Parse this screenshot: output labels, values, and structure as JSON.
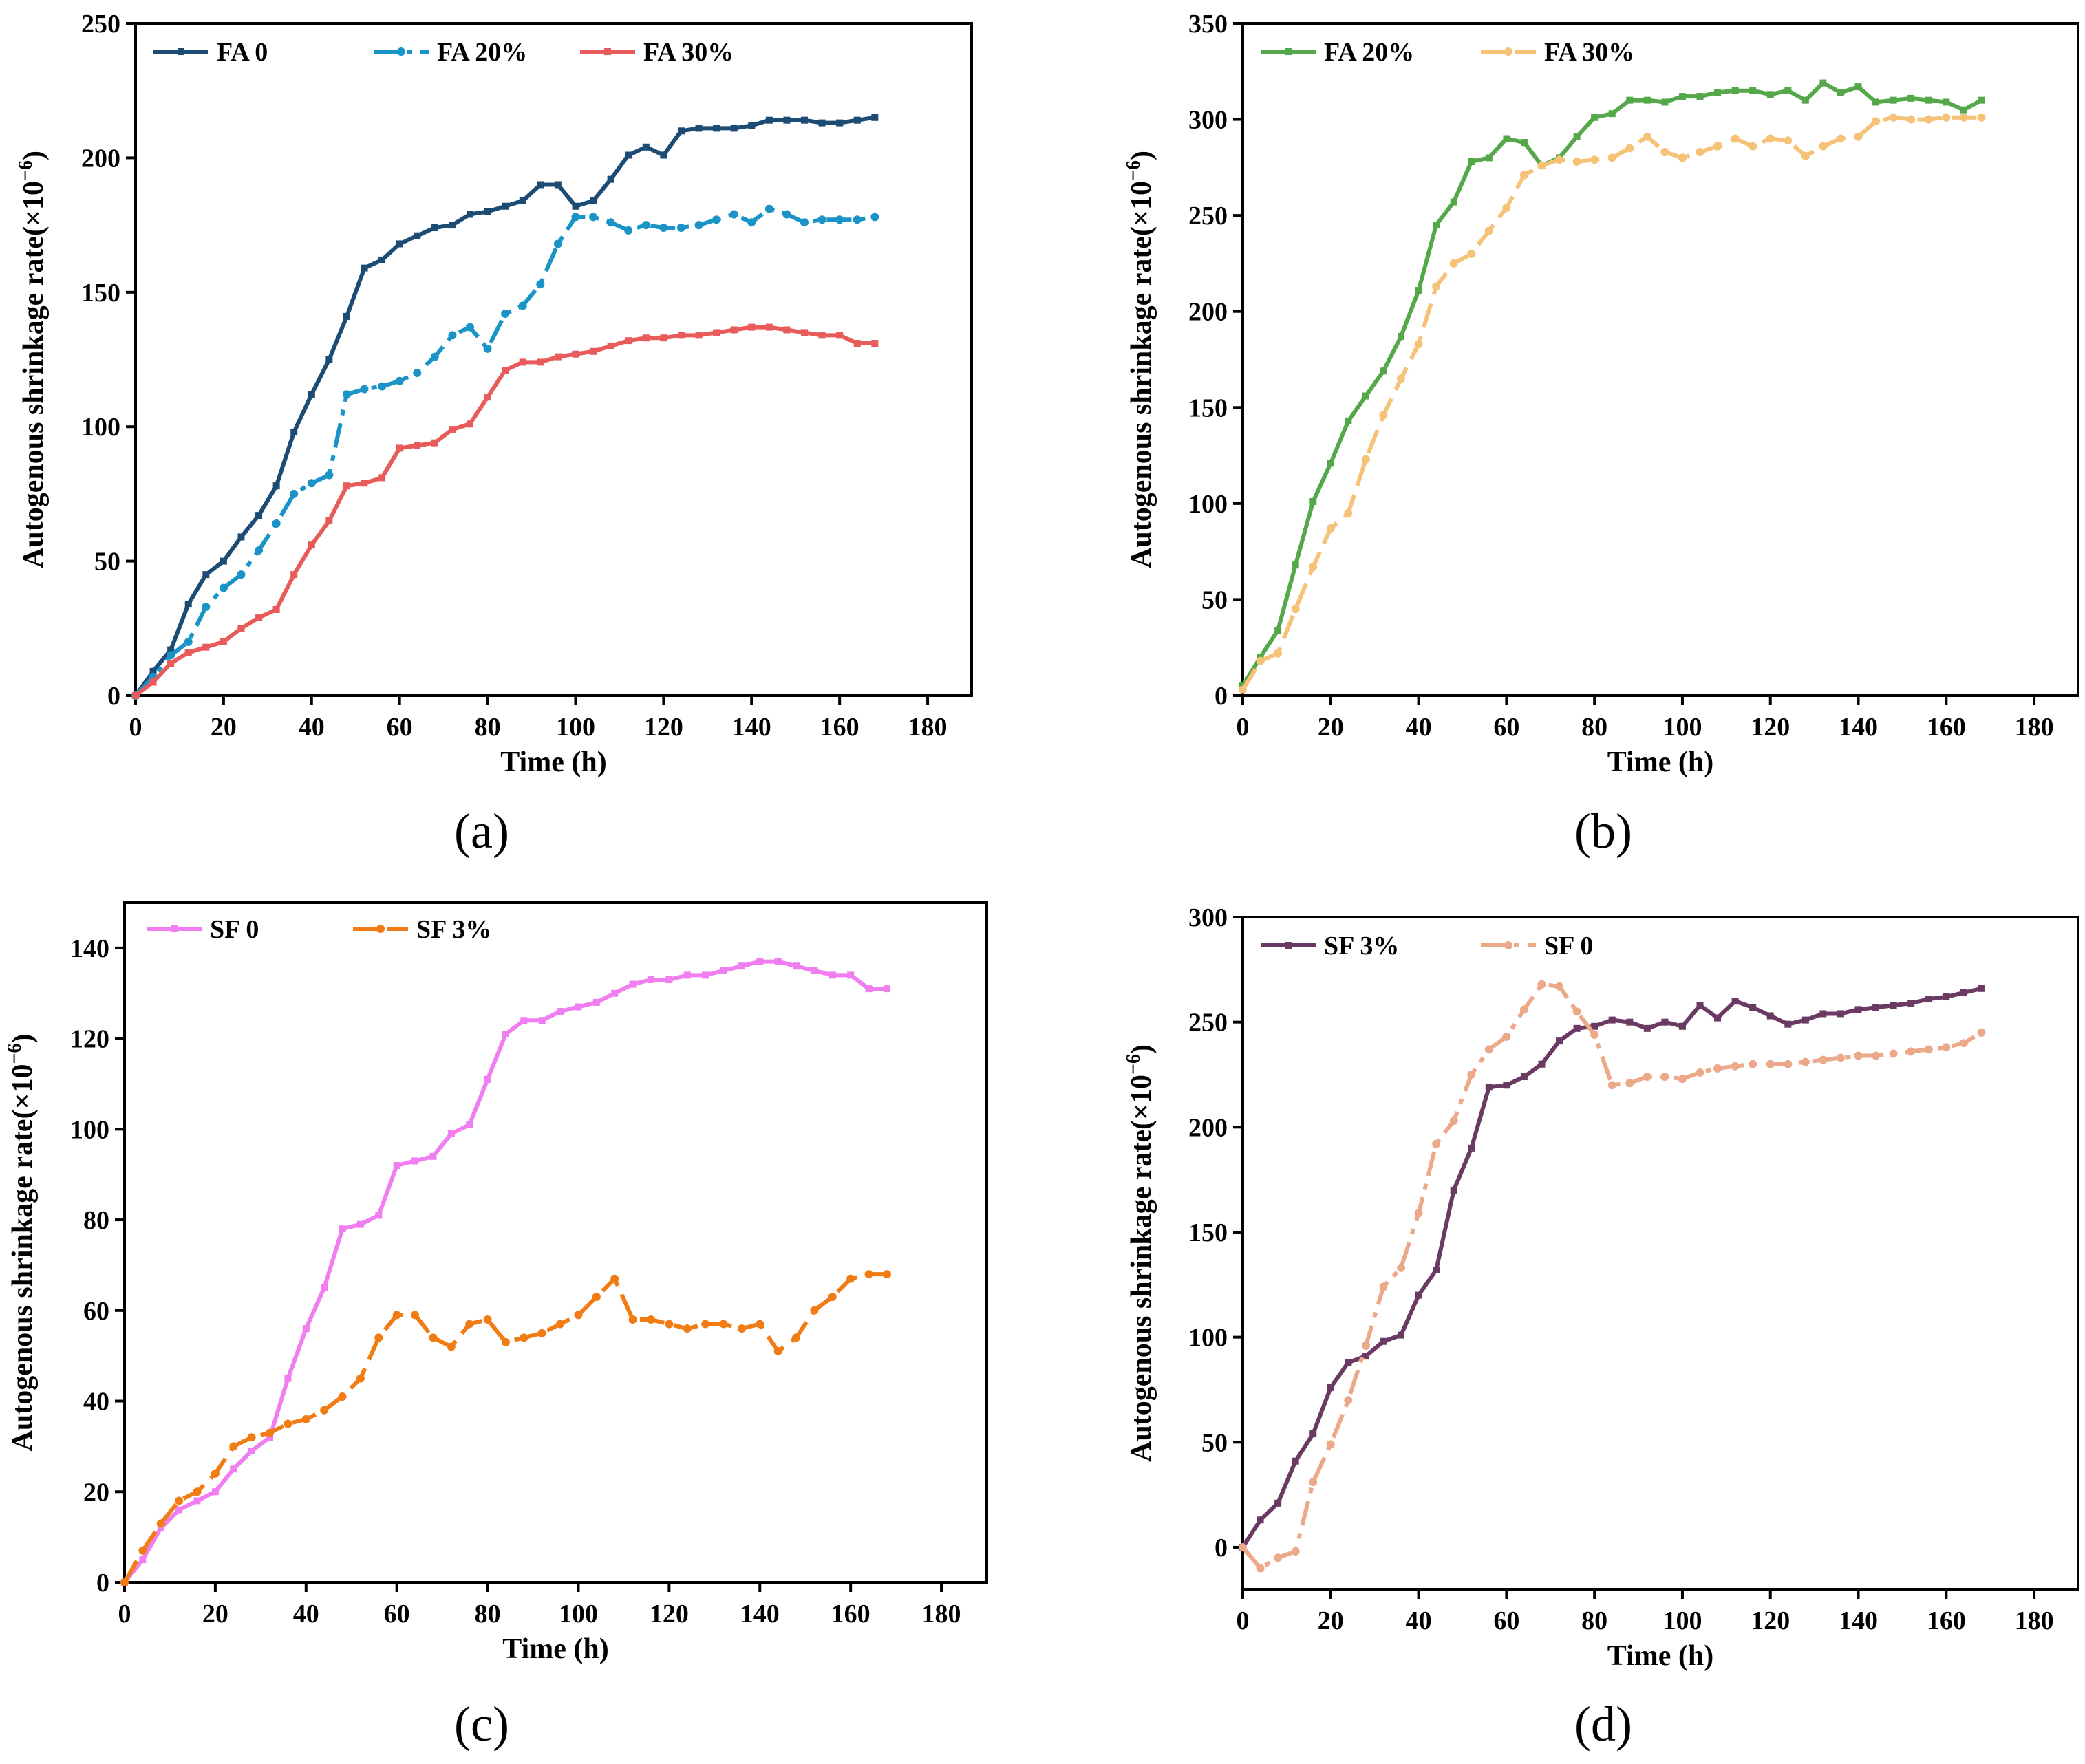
{
  "chart_data": [
    {
      "panel_label": "(a)",
      "type": "line",
      "xlabel": "Time (h)",
      "ylabel": "Autogenous shrinkage rate(×10",
      "ylabel_exp": "−6",
      "ylabel_close": ")",
      "xlim": [
        0,
        190
      ],
      "ylim": [
        0,
        250
      ],
      "xticks": [
        0,
        20,
        40,
        60,
        80,
        100,
        120,
        140,
        160,
        180
      ],
      "yticks": [
        0,
        50,
        100,
        150,
        200,
        250
      ],
      "series": [
        {
          "name": "FA 0",
          "color": "#1c4c73",
          "dash": "solid",
          "marker": "square",
          "x": [
            0,
            4,
            8,
            12,
            16,
            20,
            24,
            28,
            32,
            36,
            40,
            44,
            48,
            52,
            56,
            60,
            64,
            68,
            72,
            76,
            80,
            84,
            88,
            92,
            96,
            100,
            104,
            108,
            112,
            116,
            120,
            124,
            128,
            132,
            136,
            140,
            144,
            148,
            152,
            156,
            160,
            164,
            168
          ],
          "y": [
            0,
            9,
            17,
            34,
            45,
            50,
            59,
            67,
            78,
            98,
            112,
            125,
            141,
            159,
            162,
            168,
            171,
            174,
            175,
            179,
            180,
            182,
            184,
            190,
            190,
            182,
            184,
            192,
            201,
            204,
            201,
            210,
            211,
            211,
            211,
            212,
            214,
            214,
            214,
            213,
            213,
            214,
            215
          ]
        },
        {
          "name": "FA 20%",
          "color": "#1a93c7",
          "dash": "dashdot",
          "marker": "circle",
          "x": [
            0,
            4,
            8,
            12,
            16,
            20,
            24,
            28,
            32,
            36,
            40,
            44,
            48,
            52,
            56,
            60,
            64,
            68,
            72,
            76,
            80,
            84,
            88,
            92,
            96,
            100,
            104,
            108,
            112,
            116,
            120,
            124,
            128,
            132,
            136,
            140,
            144,
            148,
            152,
            156,
            160,
            164,
            168
          ],
          "y": [
            0,
            7,
            15,
            20,
            33,
            40,
            45,
            54,
            64,
            75,
            79,
            82,
            112,
            114,
            115,
            117,
            120,
            126,
            134,
            137,
            129,
            142,
            145,
            153,
            168,
            178,
            178,
            176,
            173,
            175,
            174,
            174,
            175,
            177,
            179,
            176,
            181,
            179,
            176,
            177,
            177,
            177,
            178
          ]
        },
        {
          "name": "FA 30%",
          "color": "#e85b5b",
          "dash": "solid",
          "marker": "square",
          "x": [
            0,
            4,
            8,
            12,
            16,
            20,
            24,
            28,
            32,
            36,
            40,
            44,
            48,
            52,
            56,
            60,
            64,
            68,
            72,
            76,
            80,
            84,
            88,
            92,
            96,
            100,
            104,
            108,
            112,
            116,
            120,
            124,
            128,
            132,
            136,
            140,
            144,
            148,
            152,
            156,
            160,
            164,
            168
          ],
          "y": [
            0,
            5,
            12,
            16,
            18,
            20,
            25,
            29,
            32,
            45,
            56,
            65,
            78,
            79,
            81,
            92,
            93,
            94,
            99,
            101,
            111,
            121,
            124,
            124,
            126,
            127,
            128,
            130,
            132,
            133,
            133,
            134,
            134,
            135,
            136,
            137,
            137,
            136,
            135,
            134,
            134,
            131,
            131
          ]
        }
      ]
    },
    {
      "panel_label": "(b)",
      "type": "line",
      "xlabel": "Time (h)",
      "ylabel": "Autogenous shrinkage rate(×10",
      "ylabel_exp": "−6",
      "ylabel_close": ")",
      "xlim": [
        0,
        190
      ],
      "ylim": [
        0,
        350
      ],
      "xticks": [
        0,
        20,
        40,
        60,
        80,
        100,
        120,
        140,
        160,
        180
      ],
      "yticks": [
        0,
        50,
        100,
        150,
        200,
        250,
        300,
        350
      ],
      "series": [
        {
          "name": "FA 20%",
          "color": "#55a84a",
          "dash": "solid",
          "marker": "square",
          "x": [
            0,
            4,
            8,
            12,
            16,
            20,
            24,
            28,
            32,
            36,
            40,
            44,
            48,
            52,
            56,
            60,
            64,
            68,
            72,
            76,
            80,
            84,
            88,
            92,
            96,
            100,
            104,
            108,
            112,
            116,
            120,
            124,
            128,
            132,
            136,
            140,
            144,
            148,
            152,
            156,
            160,
            164,
            168
          ],
          "y": [
            5,
            20,
            34,
            68,
            101,
            121,
            143,
            156,
            169,
            187,
            211,
            245,
            257,
            278,
            280,
            290,
            288,
            276,
            280,
            291,
            301,
            303,
            310,
            310,
            309,
            312,
            312,
            314,
            315,
            315,
            313,
            315,
            310,
            319,
            314,
            317,
            309,
            310,
            311,
            310,
            309,
            305,
            310
          ]
        },
        {
          "name": "FA 30%",
          "color": "#f5c277",
          "dash": "dashed",
          "marker": "circle",
          "x": [
            0,
            4,
            8,
            12,
            16,
            20,
            24,
            28,
            32,
            36,
            40,
            44,
            48,
            52,
            56,
            60,
            64,
            68,
            72,
            76,
            80,
            84,
            88,
            92,
            96,
            100,
            104,
            108,
            112,
            116,
            120,
            124,
            128,
            132,
            136,
            140,
            144,
            148,
            152,
            156,
            160,
            164,
            168
          ],
          "y": [
            3,
            18,
            22,
            45,
            67,
            87,
            95,
            123,
            146,
            165,
            183,
            213,
            225,
            230,
            242,
            254,
            271,
            276,
            279,
            278,
            279,
            280,
            285,
            291,
            283,
            280,
            283,
            286,
            290,
            286,
            290,
            289,
            281,
            286,
            290,
            291,
            299,
            301,
            300,
            300,
            301,
            301,
            301
          ]
        }
      ]
    },
    {
      "panel_label": "(c)",
      "type": "line",
      "xlabel": "Time (h)",
      "ylabel": "Autogenous shrinkage rate(×10",
      "ylabel_exp": "−6",
      "ylabel_close": ")",
      "xlim": [
        0,
        190
      ],
      "ylim": [
        0,
        150
      ],
      "xticks": [
        0,
        20,
        40,
        60,
        80,
        100,
        120,
        140,
        160,
        180
      ],
      "yticks": [
        0,
        20,
        40,
        60,
        80,
        100,
        120,
        140
      ],
      "series": [
        {
          "name": "SF 0",
          "color": "#f07ef0",
          "dash": "solid",
          "marker": "square",
          "x": [
            0,
            4,
            8,
            12,
            16,
            20,
            24,
            28,
            32,
            36,
            40,
            44,
            48,
            52,
            56,
            60,
            64,
            68,
            72,
            76,
            80,
            84,
            88,
            92,
            96,
            100,
            104,
            108,
            112,
            116,
            120,
            124,
            128,
            132,
            136,
            140,
            144,
            148,
            152,
            156,
            160,
            164,
            168
          ],
          "y": [
            0,
            5,
            12,
            16,
            18,
            20,
            25,
            29,
            32,
            45,
            56,
            65,
            78,
            79,
            81,
            92,
            93,
            94,
            99,
            101,
            111,
            121,
            124,
            124,
            126,
            127,
            128,
            130,
            132,
            133,
            133,
            134,
            134,
            135,
            136,
            137,
            137,
            136,
            135,
            134,
            134,
            131,
            131
          ]
        },
        {
          "name": "SF 3%",
          "color": "#f27c14",
          "dash": "dashed",
          "marker": "circle",
          "x": [
            0,
            4,
            8,
            12,
            16,
            20,
            24,
            28,
            32,
            36,
            40,
            44,
            48,
            52,
            56,
            60,
            64,
            68,
            72,
            76,
            80,
            84,
            88,
            92,
            96,
            100,
            104,
            108,
            112,
            116,
            120,
            124,
            128,
            132,
            136,
            140,
            144,
            148,
            152,
            156,
            160,
            164,
            168
          ],
          "y": [
            0,
            7,
            13,
            18,
            20,
            24,
            30,
            32,
            33,
            35,
            36,
            38,
            41,
            45,
            54,
            59,
            59,
            54,
            52,
            57,
            58,
            53,
            54,
            55,
            57,
            59,
            63,
            67,
            58,
            58,
            57,
            56,
            57,
            57,
            56,
            57,
            51,
            54,
            60,
            63,
            67,
            68,
            68
          ]
        }
      ]
    },
    {
      "panel_label": "(d)",
      "type": "line",
      "xlabel": "Time (h)",
      "ylabel": "Autogenous shrinkage rate(×10",
      "ylabel_exp": "−6",
      "ylabel_close": ")",
      "xlim": [
        0,
        190
      ],
      "ylim": [
        -20,
        300
      ],
      "xticks": [
        0,
        20,
        40,
        60,
        80,
        100,
        120,
        140,
        160,
        180
      ],
      "yticks": [
        0,
        50,
        100,
        150,
        200,
        250,
        300
      ],
      "series": [
        {
          "name": "SF 3%",
          "color": "#6b3a63",
          "dash": "solid",
          "marker": "square",
          "x": [
            0,
            4,
            8,
            12,
            16,
            20,
            24,
            28,
            32,
            36,
            40,
            44,
            48,
            52,
            56,
            60,
            64,
            68,
            72,
            76,
            80,
            84,
            88,
            92,
            96,
            100,
            104,
            108,
            112,
            116,
            120,
            124,
            128,
            132,
            136,
            140,
            144,
            148,
            152,
            156,
            160,
            164,
            168
          ],
          "y": [
            0,
            13,
            21,
            41,
            54,
            76,
            88,
            91,
            98,
            101,
            120,
            132,
            170,
            190,
            219,
            220,
            224,
            230,
            241,
            247,
            248,
            251,
            250,
            247,
            250,
            248,
            258,
            252,
            260,
            257,
            253,
            249,
            251,
            254,
            254,
            256,
            257,
            258,
            259,
            261,
            262,
            264,
            266
          ]
        },
        {
          "name": "SF 0",
          "color": "#eba98a",
          "dash": "dashdot",
          "marker": "circle",
          "x": [
            0,
            4,
            8,
            12,
            16,
            20,
            24,
            28,
            32,
            36,
            40,
            44,
            48,
            52,
            56,
            60,
            64,
            68,
            72,
            76,
            80,
            84,
            88,
            92,
            96,
            100,
            104,
            108,
            112,
            116,
            120,
            124,
            128,
            132,
            136,
            140,
            144,
            148,
            152,
            156,
            160,
            164,
            168
          ],
          "y": [
            0,
            -10,
            -5,
            -2,
            31,
            49,
            70,
            96,
            124,
            133,
            159,
            192,
            203,
            225,
            237,
            243,
            256,
            268,
            267,
            255,
            244,
            220,
            221,
            224,
            224,
            223,
            226,
            228,
            229,
            230,
            230,
            230,
            231,
            232,
            233,
            234,
            234,
            235,
            236,
            237,
            238,
            240,
            245
          ]
        }
      ]
    }
  ]
}
